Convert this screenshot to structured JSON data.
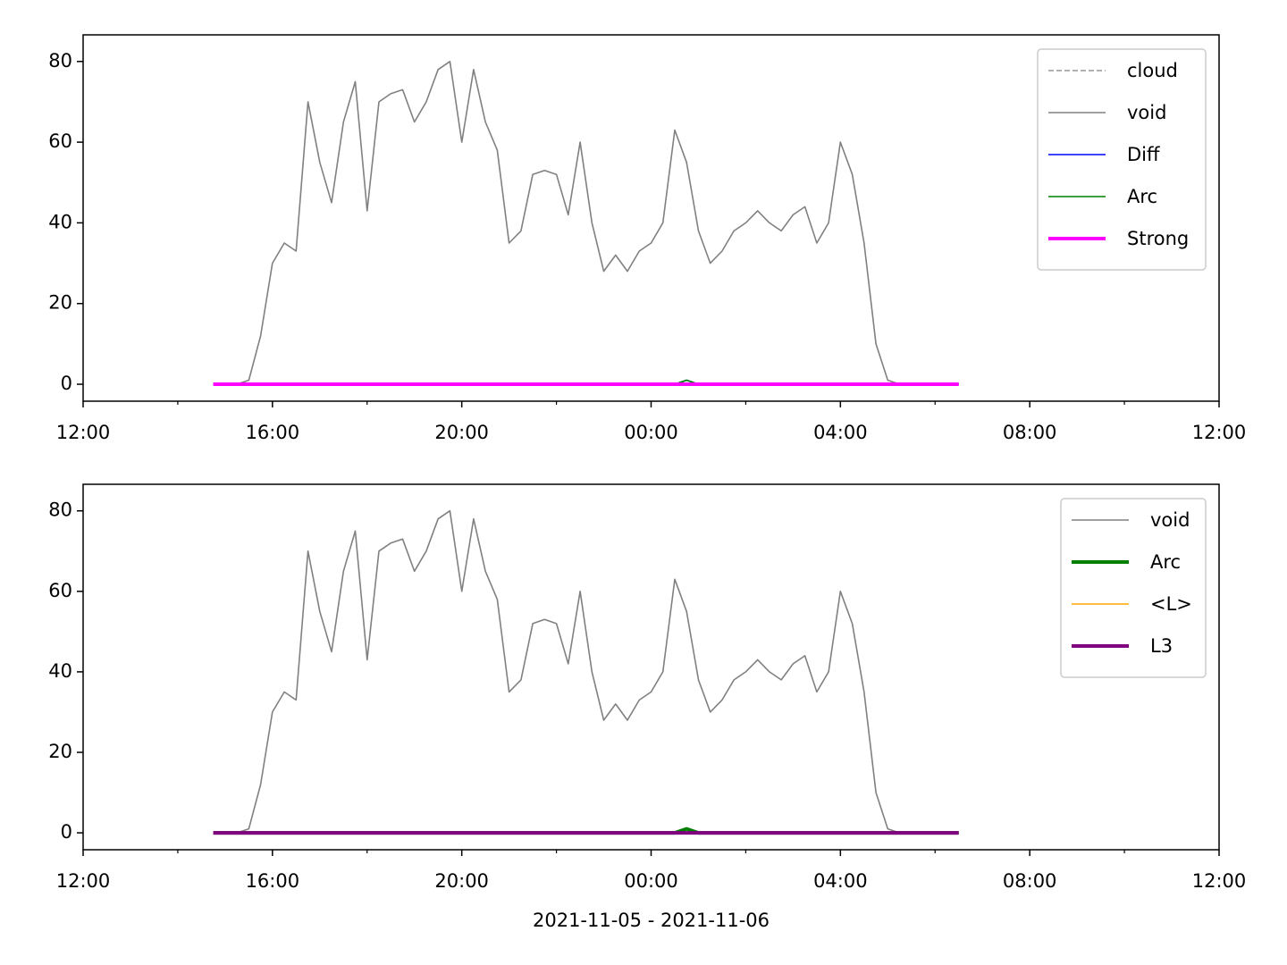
{
  "chart_data": [
    {
      "type": "line",
      "x": [
        "2021-11-05T14:45",
        "2021-11-05T15:00",
        "2021-11-05T15:15",
        "2021-11-05T15:30",
        "2021-11-05T15:45",
        "2021-11-05T16:00",
        "2021-11-05T16:15",
        "2021-11-05T16:30",
        "2021-11-05T16:45",
        "2021-11-05T17:00",
        "2021-11-05T17:15",
        "2021-11-05T17:30",
        "2021-11-05T17:45",
        "2021-11-05T18:00",
        "2021-11-05T18:15",
        "2021-11-05T18:30",
        "2021-11-05T18:45",
        "2021-11-05T19:00",
        "2021-11-05T19:15",
        "2021-11-05T19:30",
        "2021-11-05T19:45",
        "2021-11-05T20:00",
        "2021-11-05T20:15",
        "2021-11-05T20:30",
        "2021-11-05T20:45",
        "2021-11-05T21:00",
        "2021-11-05T21:15",
        "2021-11-05T21:30",
        "2021-11-05T21:45",
        "2021-11-05T22:00",
        "2021-11-05T22:15",
        "2021-11-05T22:30",
        "2021-11-05T22:45",
        "2021-11-05T23:00",
        "2021-11-05T23:15",
        "2021-11-05T23:30",
        "2021-11-05T23:45",
        "2021-11-06T00:00",
        "2021-11-06T00:15",
        "2021-11-06T00:30",
        "2021-11-06T00:45",
        "2021-11-06T01:00",
        "2021-11-06T01:15",
        "2021-11-06T01:30",
        "2021-11-06T01:45",
        "2021-11-06T02:00",
        "2021-11-06T02:15",
        "2021-11-06T02:30",
        "2021-11-06T02:45",
        "2021-11-06T03:00",
        "2021-11-06T03:15",
        "2021-11-06T03:30",
        "2021-11-06T03:45",
        "2021-11-06T04:00",
        "2021-11-06T04:15",
        "2021-11-06T04:30",
        "2021-11-06T04:45",
        "2021-11-06T05:00",
        "2021-11-06T05:15",
        "2021-11-06T05:30",
        "2021-11-06T05:45",
        "2021-11-06T06:00",
        "2021-11-06T06:15",
        "2021-11-06T06:30"
      ],
      "series": [
        {
          "name": "cloud",
          "color": "#808080",
          "linewidth": 1.3,
          "linestyle": "dashed",
          "values": [
            0,
            0,
            0,
            0,
            0,
            0,
            0,
            0,
            0,
            0,
            0,
            0,
            0,
            0,
            0,
            0,
            0,
            0,
            0,
            0,
            0,
            0,
            0,
            0,
            0,
            0,
            0,
            0,
            0,
            0,
            0,
            0,
            0,
            0,
            0,
            0,
            0,
            0,
            0,
            0,
            0,
            0,
            0,
            0,
            0,
            0,
            0,
            0,
            0,
            0,
            0,
            0,
            0,
            0,
            0,
            0,
            0,
            0,
            0,
            0,
            0,
            0,
            0,
            0
          ]
        },
        {
          "name": "void",
          "color": "#808080",
          "linewidth": 1.6,
          "linestyle": "solid",
          "values": [
            0,
            0,
            0,
            1,
            12,
            30,
            35,
            33,
            70,
            55,
            45,
            65,
            75,
            43,
            70,
            72,
            73,
            65,
            70,
            78,
            80,
            60,
            78,
            65,
            58,
            35,
            38,
            52,
            53,
            52,
            42,
            60,
            40,
            28,
            32,
            28,
            33,
            35,
            40,
            63,
            55,
            38,
            30,
            33,
            38,
            40,
            43,
            40,
            38,
            42,
            44,
            35,
            40,
            60,
            52,
            35,
            10,
            1,
            0,
            0,
            0,
            0,
            0,
            0
          ]
        },
        {
          "name": "Diff",
          "color": "#0000ff",
          "linewidth": 1.6,
          "linestyle": "solid",
          "values": [
            0,
            0,
            0,
            0,
            0,
            0,
            0,
            0,
            0,
            0,
            0,
            0,
            0,
            0,
            0,
            0,
            0,
            0,
            0,
            0,
            0,
            0,
            0,
            0,
            0,
            0,
            0,
            0,
            0,
            0,
            0,
            0,
            0,
            0,
            0,
            0,
            0,
            0,
            0,
            0,
            1,
            0,
            0,
            0,
            0,
            0,
            0,
            0,
            0,
            0,
            0,
            0,
            0,
            0,
            0,
            0,
            0,
            0,
            0,
            0,
            0,
            0,
            0,
            0
          ]
        },
        {
          "name": "Arc",
          "color": "#008000",
          "linewidth": 1.6,
          "linestyle": "solid",
          "values": [
            0,
            0,
            0,
            0,
            0,
            0,
            0,
            0,
            0,
            0,
            0,
            0,
            0,
            0,
            0,
            0,
            0,
            0,
            0,
            0,
            0,
            0,
            0,
            0,
            0,
            0,
            0,
            0,
            0,
            0,
            0,
            0,
            0,
            0,
            0,
            0,
            0,
            0,
            0,
            0,
            1,
            0,
            0,
            0,
            0,
            0,
            0,
            0,
            0,
            0,
            0,
            0,
            0,
            0,
            0,
            0,
            0,
            0,
            0,
            0,
            0,
            0,
            0,
            0
          ]
        },
        {
          "name": "Strong",
          "color": "#ff00ff",
          "linewidth": 4,
          "linestyle": "solid",
          "values": [
            0,
            0,
            0,
            0,
            0,
            0,
            0,
            0,
            0,
            0,
            0,
            0,
            0,
            0,
            0,
            0,
            0,
            0,
            0,
            0,
            0,
            0,
            0,
            0,
            0,
            0,
            0,
            0,
            0,
            0,
            0,
            0,
            0,
            0,
            0,
            0,
            0,
            0,
            0,
            0,
            0,
            0,
            0,
            0,
            0,
            0,
            0,
            0,
            0,
            0,
            0,
            0,
            0,
            0,
            0,
            0,
            0,
            0,
            0,
            0,
            0,
            0,
            0,
            0
          ]
        }
      ],
      "xlim": [
        "2021-11-05T12:00",
        "2021-11-06T12:00"
      ],
      "xticks": [
        {
          "value": "2021-11-05T12:00",
          "label": "12:00"
        },
        {
          "value": "2021-11-05T16:00",
          "label": "16:00"
        },
        {
          "value": "2021-11-05T20:00",
          "label": "20:00"
        },
        {
          "value": "2021-11-06T00:00",
          "label": "00:00"
        },
        {
          "value": "2021-11-06T04:00",
          "label": "04:00"
        },
        {
          "value": "2021-11-06T08:00",
          "label": "08:00"
        },
        {
          "value": "2021-11-06T12:00",
          "label": "12:00"
        }
      ],
      "xminorticks": [
        "2021-11-05T14:00",
        "2021-11-05T18:00",
        "2021-11-05T22:00",
        "2021-11-06T02:00",
        "2021-11-06T06:00",
        "2021-11-06T10:00"
      ],
      "ylim": [
        -4.2,
        86.6
      ],
      "yticks": [
        0,
        20,
        40,
        60,
        80
      ],
      "legend": "upper right"
    },
    {
      "type": "line",
      "x": [
        "2021-11-05T14:45",
        "2021-11-05T15:00",
        "2021-11-05T15:15",
        "2021-11-05T15:30",
        "2021-11-05T15:45",
        "2021-11-05T16:00",
        "2021-11-05T16:15",
        "2021-11-05T16:30",
        "2021-11-05T16:45",
        "2021-11-05T17:00",
        "2021-11-05T17:15",
        "2021-11-05T17:30",
        "2021-11-05T17:45",
        "2021-11-05T18:00",
        "2021-11-05T18:15",
        "2021-11-05T18:30",
        "2021-11-05T18:45",
        "2021-11-05T19:00",
        "2021-11-05T19:15",
        "2021-11-05T19:30",
        "2021-11-05T19:45",
        "2021-11-05T20:00",
        "2021-11-05T20:15",
        "2021-11-05T20:30",
        "2021-11-05T20:45",
        "2021-11-05T21:00",
        "2021-11-05T21:15",
        "2021-11-05T21:30",
        "2021-11-05T21:45",
        "2021-11-05T22:00",
        "2021-11-05T22:15",
        "2021-11-05T22:30",
        "2021-11-05T22:45",
        "2021-11-05T23:00",
        "2021-11-05T23:15",
        "2021-11-05T23:30",
        "2021-11-05T23:45",
        "2021-11-06T00:00",
        "2021-11-06T00:15",
        "2021-11-06T00:30",
        "2021-11-06T00:45",
        "2021-11-06T01:00",
        "2021-11-06T01:15",
        "2021-11-06T01:30",
        "2021-11-06T01:45",
        "2021-11-06T02:00",
        "2021-11-06T02:15",
        "2021-11-06T02:30",
        "2021-11-06T02:45",
        "2021-11-06T03:00",
        "2021-11-06T03:15",
        "2021-11-06T03:30",
        "2021-11-06T03:45",
        "2021-11-06T04:00",
        "2021-11-06T04:15",
        "2021-11-06T04:30",
        "2021-11-06T04:45",
        "2021-11-06T05:00",
        "2021-11-06T05:15",
        "2021-11-06T05:30",
        "2021-11-06T05:45",
        "2021-11-06T06:00",
        "2021-11-06T06:15",
        "2021-11-06T06:30"
      ],
      "series": [
        {
          "name": "void",
          "color": "#808080",
          "linewidth": 1.6,
          "linestyle": "solid",
          "values": [
            0,
            0,
            0,
            1,
            12,
            30,
            35,
            33,
            70,
            55,
            45,
            65,
            75,
            43,
            70,
            72,
            73,
            65,
            70,
            78,
            80,
            60,
            78,
            65,
            58,
            35,
            38,
            52,
            53,
            52,
            42,
            60,
            40,
            28,
            32,
            28,
            33,
            35,
            40,
            63,
            55,
            38,
            30,
            33,
            38,
            40,
            43,
            40,
            38,
            42,
            44,
            35,
            40,
            60,
            52,
            35,
            10,
            1,
            0,
            0,
            0,
            0,
            0,
            0
          ]
        },
        {
          "name": "Arc",
          "color": "#008000",
          "linewidth": 4,
          "linestyle": "solid",
          "values": [
            0,
            0,
            0,
            0,
            0,
            0,
            0,
            0,
            0,
            0,
            0,
            0,
            0,
            0,
            0,
            0,
            0,
            0,
            0,
            0,
            0,
            0,
            0,
            0,
            0,
            0,
            0,
            0,
            0,
            0,
            0,
            0,
            0,
            0,
            0,
            0,
            0,
            0,
            0,
            0,
            1,
            0,
            0,
            0,
            0,
            0,
            0,
            0,
            0,
            0,
            0,
            0,
            0,
            0,
            0,
            0,
            0,
            0,
            0,
            0,
            0,
            0,
            0,
            0
          ]
        },
        {
          "name": "<L>",
          "color": "#ffa500",
          "linewidth": 1.6,
          "linestyle": "solid",
          "values": [
            0,
            0,
            0,
            0,
            0,
            0,
            0,
            0,
            0,
            0,
            0,
            0,
            0,
            0,
            0,
            0,
            0,
            0,
            0,
            0,
            0,
            0,
            0,
            0,
            0,
            0,
            0,
            0,
            0,
            0,
            0,
            0,
            0,
            0,
            0,
            0,
            0,
            0,
            0,
            0,
            0,
            0,
            0,
            0,
            0,
            0,
            0,
            0,
            0,
            0,
            0,
            0,
            0,
            0,
            0,
            0,
            0,
            0,
            0,
            0,
            0,
            0,
            0,
            0
          ]
        },
        {
          "name": "L3",
          "color": "#800080",
          "linewidth": 4,
          "linestyle": "solid",
          "values": [
            0,
            0,
            0,
            0,
            0,
            0,
            0,
            0,
            0,
            0,
            0,
            0,
            0,
            0,
            0,
            0,
            0,
            0,
            0,
            0,
            0,
            0,
            0,
            0,
            0,
            0,
            0,
            0,
            0,
            0,
            0,
            0,
            0,
            0,
            0,
            0,
            0,
            0,
            0,
            0,
            0,
            0,
            0,
            0,
            0,
            0,
            0,
            0,
            0,
            0,
            0,
            0,
            0,
            0,
            0,
            0,
            0,
            0,
            0,
            0,
            0,
            0,
            0,
            0
          ]
        }
      ],
      "xlim": [
        "2021-11-05T12:00",
        "2021-11-06T12:00"
      ],
      "xticks": [
        {
          "value": "2021-11-05T12:00",
          "label": "12:00"
        },
        {
          "value": "2021-11-05T16:00",
          "label": "16:00"
        },
        {
          "value": "2021-11-05T20:00",
          "label": "20:00"
        },
        {
          "value": "2021-11-06T00:00",
          "label": "00:00"
        },
        {
          "value": "2021-11-06T04:00",
          "label": "04:00"
        },
        {
          "value": "2021-11-06T08:00",
          "label": "08:00"
        },
        {
          "value": "2021-11-06T12:00",
          "label": "12:00"
        }
      ],
      "xminorticks": [
        "2021-11-05T14:00",
        "2021-11-05T18:00",
        "2021-11-05T22:00",
        "2021-11-06T02:00",
        "2021-11-06T06:00",
        "2021-11-06T10:00"
      ],
      "ylim": [
        -4.2,
        86.6
      ],
      "yticks": [
        0,
        20,
        40,
        60,
        80
      ],
      "legend": "upper right",
      "xlabel": "2021-11-05 - 2021-11-06"
    }
  ]
}
